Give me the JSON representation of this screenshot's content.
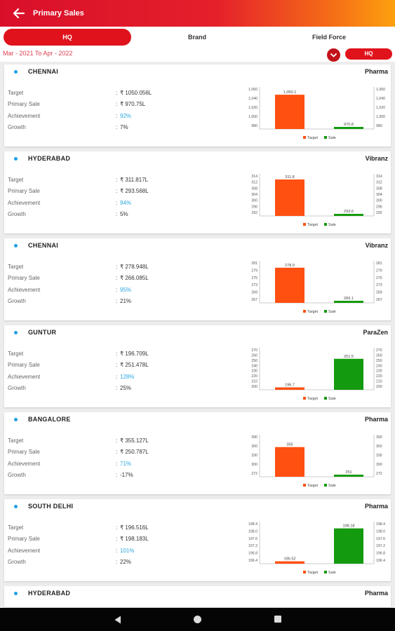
{
  "appbar": {
    "title": "Primary Sales"
  },
  "tabs": [
    {
      "label": "HQ",
      "active": true
    },
    {
      "label": "Brand",
      "active": false
    },
    {
      "label": "Field Force",
      "active": false
    }
  ],
  "filter": {
    "period": "Mar - 2021 To Apr - 2022",
    "hq_button": "HQ"
  },
  "labels": {
    "target": "Target",
    "primary_sale": "Primary Sale",
    "achievement": "Achievement",
    "growth": "Growth",
    "colon": ":"
  },
  "cards": [
    {
      "city": "CHENNAI",
      "brand": "Pharma",
      "target": "₹ 1050.056L",
      "sale": "₹ 970.75L",
      "achievement": "92%",
      "growth": "7%",
      "chart_data": {
        "type": "bar",
        "categories": [
          "Target",
          "Sale"
        ],
        "values": [
          1050.1,
          970.8
        ],
        "value_labels": [
          "1,050.1",
          "970.8"
        ],
        "colors": [
          "#ff5011",
          "#149a0f"
        ],
        "yticks": [
          "1,060",
          "1,040",
          "1,020",
          "1,000",
          "980"
        ],
        "ylim": [
          970,
          1065
        ],
        "legend": [
          "Target",
          "Sale"
        ]
      }
    },
    {
      "city": "HYDERABAD",
      "brand": "Vibranz",
      "target": "₹ 311.817L",
      "sale": "₹ 293.568L",
      "achievement": "94%",
      "growth": "5%",
      "chart_data": {
        "type": "bar",
        "categories": [
          "Target",
          "Sale"
        ],
        "values": [
          311.8,
          293.6
        ],
        "value_labels": [
          "311.8",
          "293.6"
        ],
        "colors": [
          "#ff5011",
          "#149a0f"
        ],
        "yticks": [
          "314",
          "312",
          "308",
          "304",
          "300",
          "296",
          "292"
        ],
        "ylim": [
          292.6,
          314
        ],
        "legend": [
          "Target",
          "Sale"
        ]
      }
    },
    {
      "city": "CHENNAI",
      "brand": "Vibranz",
      "target": "₹ 278.948L",
      "sale": "₹ 266.085L",
      "achievement": "95%",
      "growth": "21%",
      "chart_data": {
        "type": "bar",
        "categories": [
          "Target",
          "Sale"
        ],
        "values": [
          278.9,
          266.1
        ],
        "value_labels": [
          "278.9",
          "266.1"
        ],
        "colors": [
          "#ff5011",
          "#149a0f"
        ],
        "yticks": [
          "281",
          "279",
          "275",
          "273",
          "269",
          "267"
        ],
        "ylim": [
          265.4,
          281
        ],
        "legend": [
          "Target",
          "Sale"
        ]
      }
    },
    {
      "city": "GUNTUR",
      "brand": "ParaZen",
      "target": "₹ 196.709L",
      "sale": "₹ 251.478L",
      "achievement": "128%",
      "growth": "25%",
      "chart_data": {
        "type": "bar",
        "categories": [
          "Target",
          "Sale"
        ],
        "values": [
          196.7,
          251.5
        ],
        "value_labels": [
          "196.7",
          "251.5"
        ],
        "colors": [
          "#ff5011",
          "#149a0f"
        ],
        "yticks": [
          "270",
          "260",
          "250",
          "240",
          "230",
          "220",
          "210",
          "200"
        ],
        "ylim": [
          192,
          270
        ],
        "legend": [
          "Target",
          "Sale"
        ]
      }
    },
    {
      "city": "BANGALORE",
      "brand": "Pharma",
      "target": "₹ 355.127L",
      "sale": "₹ 250.787L",
      "achievement": "71%",
      "growth": "-17%",
      "chart_data": {
        "type": "bar",
        "categories": [
          "Target",
          "Sale"
        ],
        "values": [
          355,
          251
        ],
        "value_labels": [
          "355",
          "251"
        ],
        "colors": [
          "#ff5011",
          "#149a0f"
        ],
        "yticks": [
          "390",
          "360",
          "330",
          "300",
          "272"
        ],
        "ylim": [
          244,
          396
        ],
        "legend": [
          "Target",
          "Sale"
        ]
      }
    },
    {
      "city": "SOUTH DELHI",
      "brand": "Pharma",
      "target": "₹ 196.516L",
      "sale": "₹ 198.183L",
      "achievement": "101%",
      "growth": "22%",
      "chart_data": {
        "type": "bar",
        "categories": [
          "Target",
          "Sale"
        ],
        "values": [
          196.52,
          198.18
        ],
        "value_labels": [
          "196.52",
          "198.18"
        ],
        "colors": [
          "#ff5011",
          "#149a0f"
        ],
        "yticks": [
          "198.4",
          "198.0",
          "197.6",
          "197.2",
          "196.8",
          "196.4"
        ],
        "ylim": [
          196.4,
          198.45
        ],
        "legend": [
          "Target",
          "Sale"
        ]
      }
    }
  ],
  "peek_card": {
    "city": "HYDERABAD",
    "brand": "Pharma"
  }
}
